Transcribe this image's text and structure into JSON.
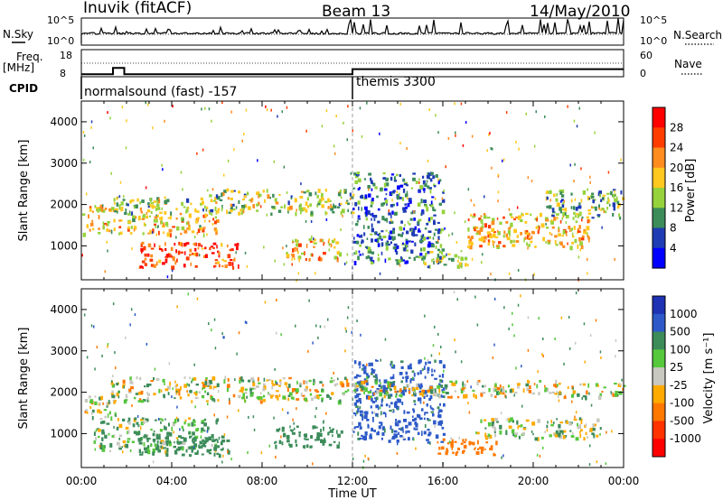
{
  "header": {
    "station": "Inuvik (fitACF)",
    "beam": "Beam 13",
    "date": "14/May/2010"
  },
  "sky_panel": {
    "left_label": "N.Sky",
    "right_label": "N.Search",
    "left_ticks": [
      "10^5",
      "10^0"
    ],
    "right_ticks": [
      "10^5",
      "10^0"
    ]
  },
  "freq_panel": {
    "left_label_line1": "Freq.",
    "left_label_line2": "[MHz]",
    "right_label": "Nave",
    "left_ticks": [
      "18",
      "8"
    ],
    "right_ticks": [
      "60",
      "0"
    ],
    "frequency_mhz": [
      [
        0.0,
        9.0
      ],
      [
        1.4,
        9.0
      ],
      [
        1.4,
        11.5
      ],
      [
        1.9,
        11.5
      ],
      [
        1.9,
        9.0
      ],
      [
        12.0,
        9.0
      ],
      [
        12.0,
        11.0
      ],
      [
        24.0,
        11.0
      ]
    ]
  },
  "cpid": {
    "label": "CPID",
    "modes": [
      {
        "name": "normalsound (fast) -157",
        "start_ut": 0
      },
      {
        "name": "themis 3300",
        "start_ut": 12
      }
    ]
  },
  "x_axis": {
    "label": "Time UT",
    "ticks": [
      "00:00",
      "04:00",
      "08:00",
      "12:00",
      "16:00",
      "20:00",
      "00:00"
    ],
    "tick_hours": [
      0,
      4,
      8,
      12,
      16,
      20,
      24
    ]
  },
  "y_axis": {
    "label": "Slant Range [km]",
    "ticks": [
      "1000",
      "2000",
      "3000",
      "4000"
    ],
    "tick_values": [
      1000,
      2000,
      3000,
      4000
    ],
    "range_km": [
      180,
      4500
    ]
  },
  "power_scale": {
    "title": "Power [dB]",
    "labels": [
      "28",
      "24",
      "20",
      "16",
      "12",
      "8",
      "4"
    ],
    "colors": [
      "#ff0000",
      "#ff3c00",
      "#ff8c1e",
      "#ffc81e",
      "#96d23c",
      "#3c8c5a",
      "#1e3cb4",
      "#0000ff"
    ]
  },
  "velocity_scale": {
    "title": "Velocity [m s⁻¹]",
    "labels": [
      "1000",
      "500",
      "100",
      "25",
      "-25",
      "-100",
      "-500",
      "-1000"
    ],
    "colors": [
      "#1e32b4",
      "#2d5ac8",
      "#3c8c5a",
      "#55c83c",
      "#c8c8c0",
      "#ffaa00",
      "#ff7800",
      "#ff3200",
      "#ff0000"
    ]
  },
  "chart_data": [
    {
      "type": "heatmap",
      "title": "Power [dB]",
      "xlabel": "Time UT",
      "ylabel": "Slant Range [km]",
      "x_range_hours": [
        0,
        24
      ],
      "y_range_km": [
        180,
        4500
      ],
      "echo_bands": [
        {
          "t_start": 0.0,
          "t_end": 1.5,
          "r_low": 1300,
          "r_high": 2000,
          "power_db": 18
        },
        {
          "t_start": 1.3,
          "t_end": 6.0,
          "r_low": 1800,
          "r_high": 2200,
          "power_db": 14
        },
        {
          "t_start": 1.5,
          "t_end": 6.0,
          "r_low": 1300,
          "r_high": 1800,
          "power_db": 18
        },
        {
          "t_start": 2.5,
          "t_end": 7.0,
          "r_low": 500,
          "r_high": 1100,
          "power_db": 26
        },
        {
          "t_start": 5.5,
          "t_end": 12.0,
          "r_low": 1800,
          "r_high": 2400,
          "power_db": 14
        },
        {
          "t_start": 9.0,
          "t_end": 11.5,
          "r_low": 700,
          "r_high": 1200,
          "power_db": 20
        },
        {
          "t_start": 12.0,
          "t_end": 16.0,
          "r_low": 600,
          "r_high": 2800,
          "power_db": 8
        },
        {
          "t_start": 15.0,
          "t_end": 17.0,
          "r_low": 500,
          "r_high": 900,
          "power_db": 14
        },
        {
          "t_start": 17.0,
          "t_end": 22.5,
          "r_low": 1000,
          "r_high": 1800,
          "power_db": 20
        },
        {
          "t_start": 20.5,
          "t_end": 24.0,
          "r_low": 1700,
          "r_high": 2400,
          "power_db": 12
        }
      ]
    },
    {
      "type": "heatmap",
      "title": "Velocity [m s⁻¹]",
      "xlabel": "Time UT",
      "ylabel": "Slant Range [km]",
      "x_range_hours": [
        0,
        24
      ],
      "y_range_km": [
        180,
        4500
      ],
      "echo_bands": [
        {
          "t_start": 0.0,
          "t_end": 1.5,
          "r_low": 1400,
          "r_high": 2000,
          "velocity_ms": 0
        },
        {
          "t_start": 1.3,
          "t_end": 12.0,
          "r_low": 1800,
          "r_high": 2400,
          "velocity_ms": 0
        },
        {
          "t_start": 0.5,
          "t_end": 6.0,
          "r_low": 600,
          "r_high": 1400,
          "velocity_ms": 100
        },
        {
          "t_start": 2.5,
          "t_end": 6.5,
          "r_low": 500,
          "r_high": 1000,
          "velocity_ms": 250
        },
        {
          "t_start": 8.5,
          "t_end": 11.5,
          "r_low": 700,
          "r_high": 1200,
          "velocity_ms": 250
        },
        {
          "t_start": 12.0,
          "t_end": 16.0,
          "r_low": 800,
          "r_high": 2800,
          "velocity_ms": 600
        },
        {
          "t_start": 12.0,
          "t_end": 24.0,
          "r_low": 1900,
          "r_high": 2300,
          "velocity_ms": 0
        },
        {
          "t_start": 15.5,
          "t_end": 18.5,
          "r_low": 500,
          "r_high": 900,
          "velocity_ms": -300
        },
        {
          "t_start": 17.5,
          "t_end": 23.0,
          "r_low": 900,
          "r_high": 1400,
          "velocity_ms": 50
        }
      ]
    }
  ]
}
